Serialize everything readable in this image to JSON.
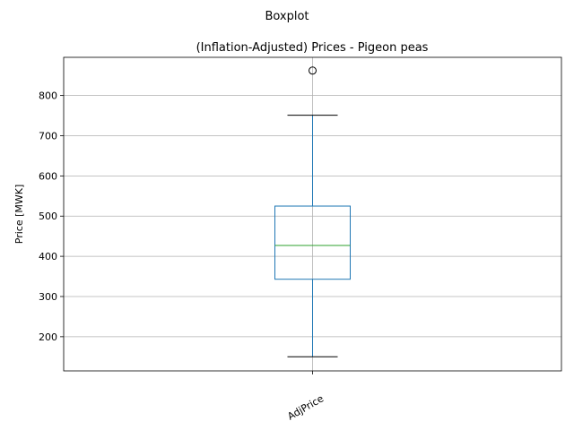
{
  "figure": {
    "suptitle": "Boxplot"
  },
  "chart_data": {
    "type": "boxplot",
    "title": "(Inflation-Adjusted) Prices - Pigeon peas",
    "xlabel": "",
    "ylabel": "Price [MWK]",
    "categories": [
      "AdjPrice"
    ],
    "ylim": [
      115,
      895
    ],
    "yticks": [
      200,
      300,
      400,
      500,
      600,
      700,
      800
    ],
    "grid": true,
    "boxes": [
      {
        "category": "AdjPrice",
        "whisker_low": 150,
        "q1": 343,
        "median": 427,
        "q3": 525,
        "whisker_high": 751,
        "fliers": [
          862
        ]
      }
    ],
    "colors": {
      "box": "#1f77b4",
      "whisker": "#1f77b4",
      "cap": "#000000",
      "median": "#2ca02c",
      "flier": "#000000",
      "grid": "#b0b0b0"
    }
  }
}
